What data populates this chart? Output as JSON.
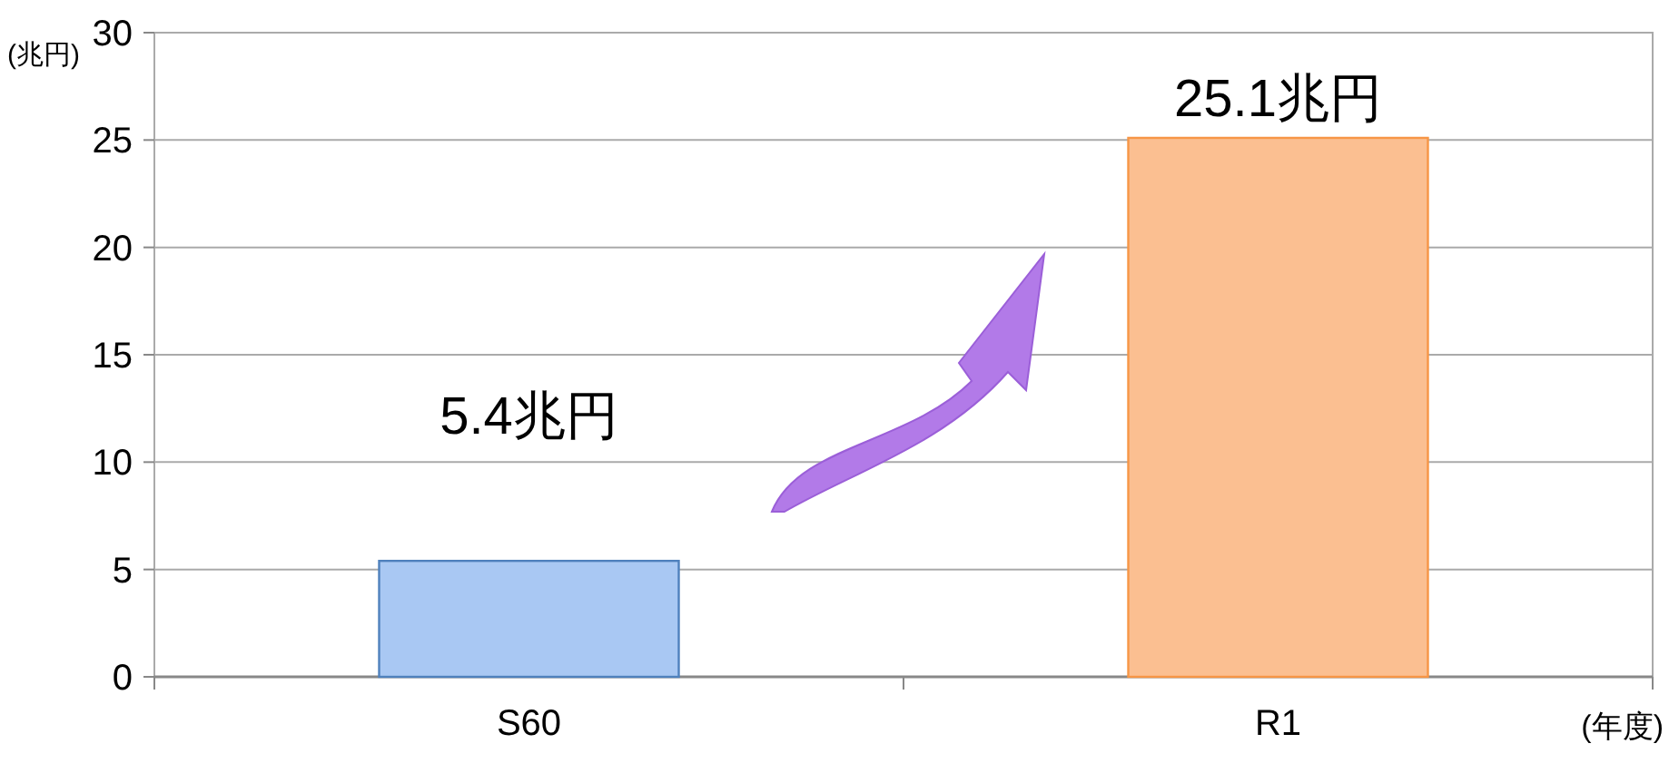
{
  "chart_data": {
    "type": "bar",
    "ylabel": "(兆円)",
    "xlabel": "(年度)",
    "categories": [
      "S60",
      "R1"
    ],
    "values": [
      5.4,
      25.1
    ],
    "value_labels": [
      "5.4兆円",
      "25.1兆円"
    ],
    "colors": [
      "#a9c8f3",
      "#fbbf91"
    ],
    "ylim": [
      0,
      30
    ],
    "yticks": [
      0,
      5,
      10,
      15,
      20,
      25,
      30
    ],
    "grid": "y"
  }
}
